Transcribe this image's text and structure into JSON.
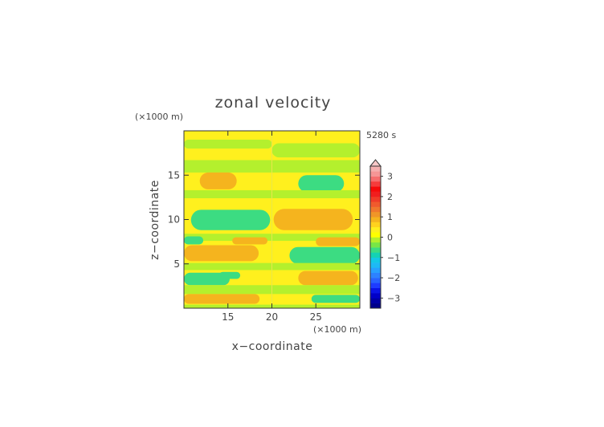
{
  "chart_data": {
    "type": "heatmap",
    "title": "zonal velocity",
    "xlabel": "x−coordinate",
    "ylabel": "z−coordinate",
    "x_unit": "(×1000 m)",
    "y_unit": "(×1000 m)",
    "time_label": "5280 s",
    "xlim": [
      10,
      30
    ],
    "ylim": [
      0,
      20
    ],
    "x_ticks": [
      15,
      20,
      25
    ],
    "x_tick_labels": [
      "15",
      "20",
      "25"
    ],
    "y_ticks": [
      5,
      10,
      15
    ],
    "y_tick_labels": [
      "5",
      "10",
      "15"
    ],
    "background_value": 0.25,
    "colorbar": {
      "levels": [
        -3.5,
        -3.25,
        -3,
        -2.75,
        -2.5,
        -2.25,
        -2,
        -1.75,
        -1.5,
        -1.25,
        -1,
        -0.75,
        -0.5,
        -0.25,
        0,
        0.25,
        0.5,
        0.75,
        1,
        1.25,
        1.5,
        1.75,
        2,
        2.25,
        2.5,
        2.75,
        3,
        3.25
      ],
      "colors": [
        "#00008b",
        "#0000a5",
        "#0000c8",
        "#0a14e6",
        "#1e3cff",
        "#2864ff",
        "#2d82ff",
        "#28a0ff",
        "#1eb9f5",
        "#14c8e6",
        "#14d2b4",
        "#3cdc82",
        "#78e646",
        "#b4f02d",
        "#ffff00",
        "#fff01e",
        "#ffd21e",
        "#f5b41e",
        "#f09628",
        "#f0782d",
        "#f05a2d",
        "#f03c28",
        "#f01e1e",
        "#f50a0a",
        "#f53c3c",
        "#f56e6e",
        "#f59696",
        "#f5afaf"
      ],
      "tick_values": [
        3,
        2,
        1,
        0,
        -1,
        -2,
        -3
      ],
      "tick_labels": [
        "3",
        "2",
        "1",
        "0",
        "−1",
        "−2",
        "−3"
      ],
      "extend": "max"
    },
    "regions": [
      {
        "x0": 10,
        "x1": 30,
        "z0": 0,
        "z1": 20,
        "value": 0.25
      },
      {
        "x0": 10,
        "x1": 20,
        "z0": 18.0,
        "z1": 19.0,
        "value": -0.25
      },
      {
        "x0": 20,
        "x1": 30,
        "z0": 17.0,
        "z1": 18.6,
        "value": -0.25
      },
      {
        "x0": 10,
        "x1": 30,
        "z0": 15.3,
        "z1": 16.7,
        "value": -0.25
      },
      {
        "x0": 11.8,
        "x1": 16.0,
        "z0": 13.4,
        "z1": 15.3,
        "value": 0.75
      },
      {
        "x0": 23.0,
        "x1": 28.2,
        "z0": 13.1,
        "z1": 15.0,
        "value": -0.75
      },
      {
        "x0": 10,
        "x1": 30,
        "z0": 12.4,
        "z1": 13.3,
        "value": -0.25
      },
      {
        "x0": 10.8,
        "x1": 19.8,
        "z0": 8.8,
        "z1": 11.1,
        "value": -0.75
      },
      {
        "x0": 20.2,
        "x1": 29.2,
        "z0": 8.8,
        "z1": 11.2,
        "value": 0.75
      },
      {
        "x0": 10,
        "x1": 30,
        "z0": 7.6,
        "z1": 8.4,
        "value": -0.25
      },
      {
        "x0": 10,
        "x1": 12.2,
        "z0": 7.2,
        "z1": 8.1,
        "value": -0.75
      },
      {
        "x0": 15.5,
        "x1": 19.5,
        "z0": 7.2,
        "z1": 8.0,
        "value": 0.75
      },
      {
        "x0": 25.0,
        "x1": 30,
        "z0": 7.0,
        "z1": 8.0,
        "value": 0.75
      },
      {
        "x0": 10,
        "x1": 18.5,
        "z0": 5.3,
        "z1": 7.1,
        "value": 0.75
      },
      {
        "x0": 22.0,
        "x1": 30,
        "z0": 5.0,
        "z1": 6.9,
        "value": -0.75
      },
      {
        "x0": 10,
        "x1": 30,
        "z0": 4.3,
        "z1": 5.1,
        "value": -0.25
      },
      {
        "x0": 10,
        "x1": 15.2,
        "z0": 2.6,
        "z1": 4.0,
        "value": -0.75
      },
      {
        "x0": 14.0,
        "x1": 16.4,
        "z0": 3.3,
        "z1": 4.1,
        "value": -0.75
      },
      {
        "x0": 23.0,
        "x1": 29.8,
        "z0": 2.6,
        "z1": 4.2,
        "value": 0.75
      },
      {
        "x0": 10,
        "x1": 30,
        "z0": 1.6,
        "z1": 2.6,
        "value": -0.25
      },
      {
        "x0": 10,
        "x1": 18.6,
        "z0": 0.5,
        "z1": 1.6,
        "value": 0.75
      },
      {
        "x0": 24.5,
        "x1": 30,
        "z0": 0.6,
        "z1": 1.5,
        "value": -0.75
      },
      {
        "x0": 10,
        "x1": 30,
        "z0": 0,
        "z1": 0.4,
        "value": -0.25
      }
    ]
  }
}
